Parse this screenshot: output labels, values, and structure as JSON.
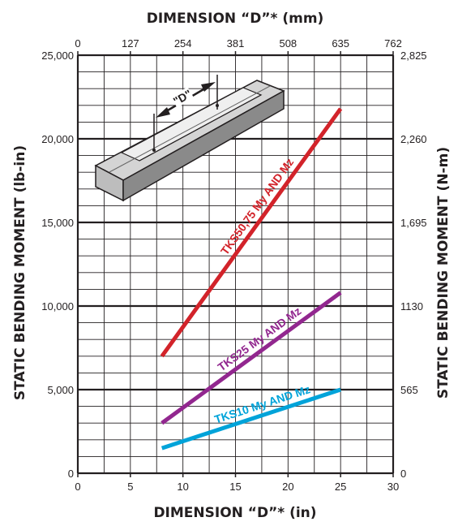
{
  "chart_data": {
    "type": "line",
    "xlabel_top": "DIMENSION “D”* (mm)",
    "xlabel_bottom": "DIMENSION “D”* (in)",
    "ylabel_left": "STATIC BENDING MOMENT (lb-in)",
    "ylabel_right": "STATIC BENDING MOMENT (N-m)",
    "xlim": [
      0,
      30
    ],
    "ylim": [
      0,
      25000
    ],
    "grid": true,
    "x_ticks_in": [
      "0",
      "5",
      "10",
      "15",
      "20",
      "25",
      "30"
    ],
    "x_ticks_mm": [
      "0",
      "127",
      "254",
      "381",
      "508",
      "635",
      "762"
    ],
    "y_ticks_lbin": [
      "0",
      "5,000",
      "10,000",
      "15,000",
      "20,000",
      "25,000"
    ],
    "y_ticks_nm": [
      "0",
      "565",
      "1130",
      "1,695",
      "2,260",
      "2,825"
    ],
    "inset_label": "\"D\"",
    "series": [
      {
        "name": "TKS50,75 My AND Mz",
        "color": "#d2232a",
        "x": [
          8,
          25
        ],
        "y": [
          7000,
          21800
        ]
      },
      {
        "name": "TKS25  My AND Mz",
        "color": "#92278f",
        "x": [
          8,
          25
        ],
        "y": [
          3000,
          10800
        ]
      },
      {
        "name": "TKS10  My AND Mz",
        "color": "#00a3d9",
        "x": [
          8,
          25
        ],
        "y": [
          1500,
          5000
        ]
      }
    ]
  }
}
